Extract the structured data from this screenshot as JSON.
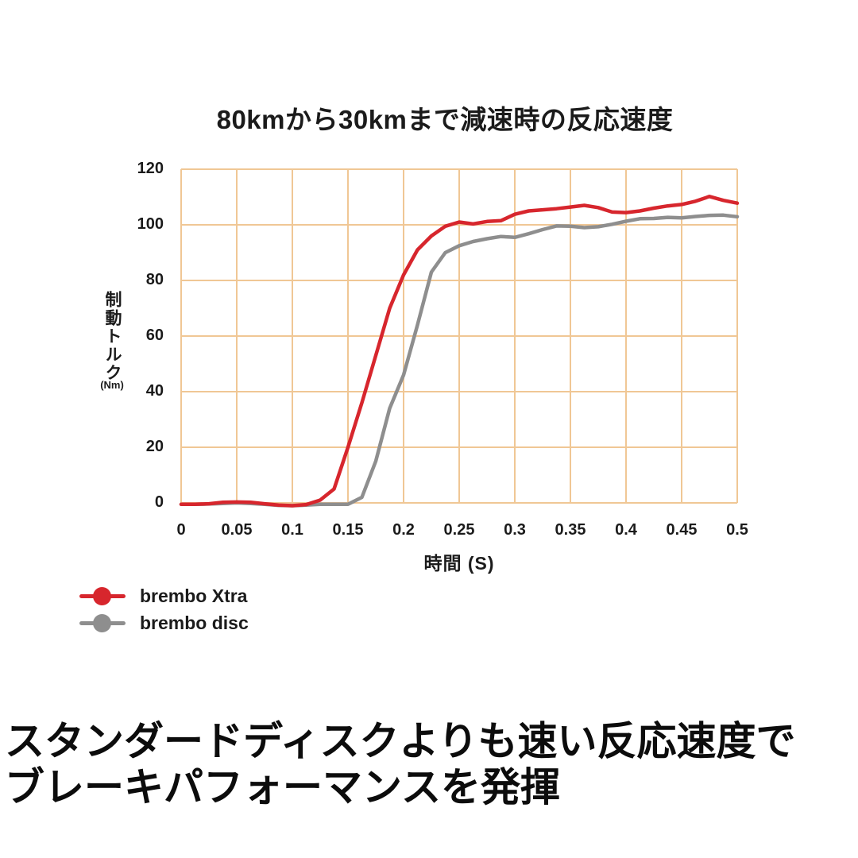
{
  "title": "80kmから30kmまで減速時の反応速度",
  "caption": {
    "line1": "スタンダードディスクよりも速い反応速度で",
    "line2": "ブレーキパフォーマンスを発揮"
  },
  "axes": {
    "y_title": "制動トルク",
    "y_unit": "(Nm)",
    "x_title": "時間 (S)"
  },
  "colors": {
    "grid": "#f0c795",
    "text": "#1b1b1b",
    "xtra_red": "#d7262d",
    "disc_gray": "#8e8e8e"
  },
  "chart_data": {
    "type": "line",
    "title": "80kmから30kmまで減速時の反応速度",
    "xlabel": "時間 (S)",
    "ylabel": "制動トルク (Nm)",
    "xlim": [
      0,
      0.5
    ],
    "ylim": [
      0,
      120
    ],
    "x_ticks": [
      "0",
      "0.05",
      "0.1",
      "0.15",
      "0.2",
      "0.25",
      "0.3",
      "0.35",
      "0.4",
      "0.45",
      "0.5"
    ],
    "y_ticks": [
      "0",
      "20",
      "40",
      "60",
      "80",
      "100",
      "120"
    ],
    "grid": true,
    "legend_position": "bottom-left",
    "x": [
      0,
      0.0125,
      0.025,
      0.0375,
      0.05,
      0.0625,
      0.075,
      0.0875,
      0.1,
      0.1125,
      0.125,
      0.1375,
      0.15,
      0.1625,
      0.175,
      0.1875,
      0.2,
      0.2125,
      0.225,
      0.2375,
      0.25,
      0.2625,
      0.275,
      0.2875,
      0.3,
      0.3125,
      0.325,
      0.3375,
      0.35,
      0.3625,
      0.375,
      0.3875,
      0.4,
      0.4125,
      0.425,
      0.4375,
      0.45,
      0.4625,
      0.475,
      0.4875,
      0.5
    ],
    "series": [
      {
        "name": "brembo Xtra",
        "color": "#d7262d",
        "values": [
          -0.5,
          -0.5,
          -0.3,
          0.2,
          0.3,
          0.2,
          -0.3,
          -0.8,
          -1,
          -0.6,
          1,
          5,
          20,
          36,
          53,
          70,
          82,
          91,
          96,
          99.5,
          101,
          100.3,
          101.2,
          101.5,
          103.8,
          105,
          105.4,
          105.8,
          106.4,
          107,
          106.2,
          104.6,
          104.4,
          105,
          106,
          106.8,
          107.3,
          108.5,
          110.2,
          108.8,
          107.8
        ]
      },
      {
        "name": "brembo disc",
        "color": "#8e8e8e",
        "values": [
          -0.5,
          -0.5,
          -0.4,
          -0.2,
          0,
          -0.2,
          -0.5,
          -0.9,
          -1,
          -0.8,
          -0.5,
          -0.5,
          -0.5,
          2,
          15,
          34,
          46,
          64,
          83,
          90,
          92.5,
          94,
          95,
          95.8,
          95.5,
          96.8,
          98.3,
          99.6,
          99.5,
          99,
          99.3,
          100.2,
          101.3,
          102.2,
          102.3,
          102.7,
          102.5,
          103,
          103.4,
          103.5,
          102.9
        ]
      }
    ]
  }
}
